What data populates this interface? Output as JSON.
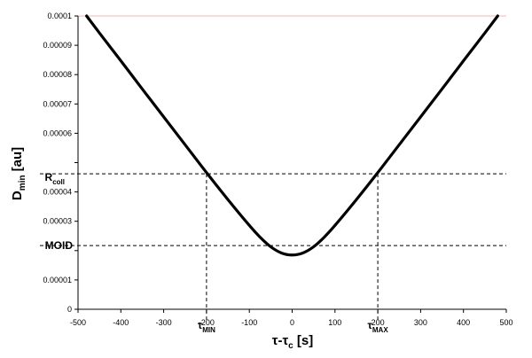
{
  "chart_data": {
    "type": "line",
    "title": "",
    "xlabel": {
      "base": "τ-τ",
      "sub": "c",
      "rest": " [s]"
    },
    "ylabel": {
      "base": "D",
      "sub": "min",
      "rest": " [au]"
    },
    "xlim": [
      -500,
      500
    ],
    "ylim": [
      0,
      0.0001
    ],
    "xticks": [
      -500,
      -400,
      -300,
      -200,
      -100,
      0,
      100,
      200,
      300,
      400,
      500
    ],
    "yticks": [
      0,
      1e-05,
      2e-05,
      3e-05,
      4e-05,
      5e-05,
      6e-05,
      7e-05,
      8e-05,
      9e-05,
      0.0001
    ],
    "xtick_labels": [
      "-500",
      "-400",
      "-300",
      "-200",
      "-100",
      "0",
      "100",
      "200",
      "300",
      "400",
      "500"
    ],
    "ytick_labels": [
      "0",
      "0.00001",
      "",
      "0.00003",
      "0.00004",
      "",
      "0.00006",
      "0.00007",
      "0.00008",
      "0.00009",
      "0.0001"
    ],
    "grid": false,
    "legend": "none",
    "series": [
      {
        "color": "#000000",
        "x": [
          -480,
          -450,
          -400,
          -350,
          -300,
          -250,
          -200,
          -150,
          -100,
          -75,
          -50,
          -25,
          0,
          25,
          50,
          75,
          100,
          150,
          200,
          250,
          300,
          350,
          400,
          450,
          480
        ],
        "y": [
          0.0001,
          9.42e-05,
          8.47e-05,
          7.51e-05,
          6.56e-05,
          5.61e-05,
          4.66e-05,
          3.74e-05,
          2.86e-05,
          2.46e-05,
          2.13e-05,
          1.92e-05,
          1.85e-05,
          1.92e-05,
          2.13e-05,
          2.46e-05,
          2.86e-05,
          3.74e-05,
          4.66e-05,
          5.61e-05,
          6.56e-05,
          7.51e-05,
          8.47e-05,
          9.42e-05,
          0.0001
        ]
      }
    ],
    "reference_lines": {
      "r_coll": {
        "value": 4.62e-05,
        "label_base": "R",
        "label_sub": "coll"
      },
      "moid": {
        "value": 2.17e-05,
        "label": "MOID"
      },
      "tau_min": {
        "value": -200,
        "label_base": "τ",
        "label_sub": "MIN"
      },
      "tau_max": {
        "value": 200,
        "label_base": "τ",
        "label_sub": "MAX"
      }
    }
  }
}
